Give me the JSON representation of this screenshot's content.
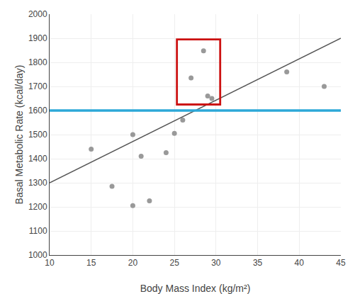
{
  "chart_data": {
    "type": "scatter",
    "xlabel": "Body Mass Index (kg/m²)",
    "ylabel": "Basal Metabolic Rate (kcal/day)",
    "series": [
      {
        "type": "scatter",
        "color": "#999999",
        "marker": "circle",
        "x": [
          15,
          17.5,
          20,
          20,
          21,
          22,
          24,
          25,
          26,
          27,
          28.5,
          29,
          29.5,
          38.5,
          43
        ],
        "values": [
          1440,
          1285,
          1205,
          1500,
          1410,
          1225,
          1425,
          1505,
          1560,
          1735,
          1848,
          1660,
          1650,
          1760,
          1700
        ]
      },
      {
        "type": "line",
        "color": "#555555",
        "line_style": "solid",
        "x": [
          10,
          45
        ],
        "values": [
          1300,
          1900
        ]
      }
    ],
    "hline": {
      "y": 1600,
      "color": "#2da8d8"
    },
    "rectangle": {
      "x": 25.3,
      "y": 1625,
      "width": 5.2,
      "height": 270,
      "color": "#cc1111"
    },
    "xlim": [
      10,
      45
    ],
    "ylim": [
      1000,
      2000
    ],
    "xticks": [
      10,
      15,
      20,
      25,
      30,
      35,
      40,
      45
    ],
    "yticks": [
      1000,
      1100,
      1200,
      1300,
      1400,
      1500,
      1600,
      1700,
      1800,
      1900,
      2000
    ],
    "grid": true
  }
}
